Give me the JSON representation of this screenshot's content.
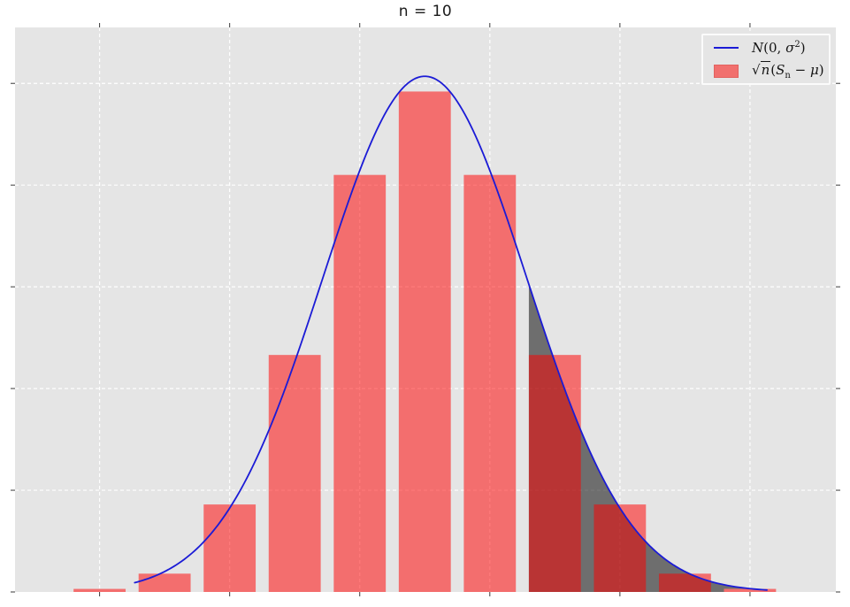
{
  "title": "n = 10",
  "legend": {
    "position": "upper right",
    "normal": {
      "N": "N",
      "open": "(0, ",
      "sigma": "σ",
      "exp": "2",
      "close": ")"
    },
    "sample": {
      "sqrt": "√",
      "n": "n",
      "open": "(",
      "S": "S",
      "sub": "n",
      "minus": " − ",
      "mu": "μ",
      "close": ")"
    }
  },
  "colors": {
    "figure_background": "#ffffff",
    "plot_background": "#e5e5e5",
    "gridline": "#ffffff",
    "bar_fill": "rgba(255,0,0,0.52)",
    "bar_result_hex": "#f26e6e",
    "overlap_result_hex": "#b23b3b",
    "tail_shade": "rgba(0,0,0,0.52)",
    "tail_shade_result_hex": "#6e6e6e",
    "curve": "#1b1bd6",
    "tick": "#3a3a3a",
    "title_text": "#1a1a1a"
  },
  "chart_data": {
    "type": "histogram+line",
    "title": "n = 10",
    "x_axis": {
      "label": "",
      "range": [
        -3.15,
        3.16
      ],
      "ticks": [
        -2.5,
        -1.5,
        -0.5,
        0.5,
        1.5,
        2.5
      ],
      "tick_labels_visible": false
    },
    "y_axis": {
      "label": "",
      "range": [
        0,
        0.555
      ],
      "ticks": [
        0,
        0.1,
        0.2,
        0.3,
        0.4,
        0.5
      ],
      "tick_labels_visible": false
    },
    "grid": true,
    "grid_style": "dashed-white",
    "legend_position": "upper right",
    "histogram": {
      "name": "sqrt(n)(S_n - mu)",
      "bin_centers": [
        -2.5,
        -2.0,
        -1.5,
        -1.0,
        -0.5,
        0.0,
        0.5,
        1.0,
        1.5,
        2.0,
        2.5
      ],
      "bin_width": 0.5,
      "bar_width": 0.4,
      "densities": [
        0.003,
        0.018,
        0.086,
        0.233,
        0.41,
        0.492,
        0.41,
        0.233,
        0.086,
        0.018,
        0.003
      ]
    },
    "curve": {
      "name": "N(0, sigma^2)",
      "distribution": "normal",
      "mu": 0,
      "sigma": 0.787,
      "peak_density": 0.507,
      "x_start": -2.23,
      "x_end": 2.64
    },
    "shaded_tail": {
      "from_x": 0.8,
      "to_x": 2.5,
      "description": "right-tail area under the normal curve, shaded dark; overlap with bars appears dark red"
    }
  }
}
